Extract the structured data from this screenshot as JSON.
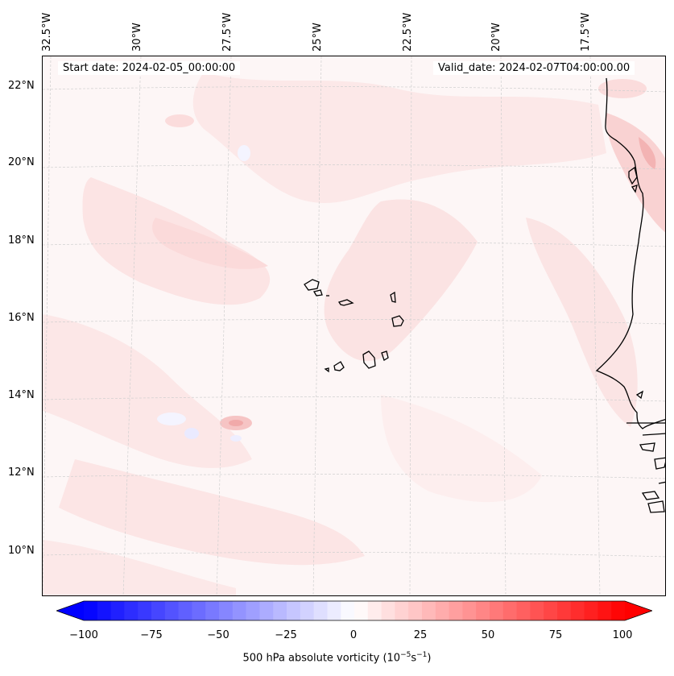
{
  "map": {
    "start_date": "Start date: 2024-02-05_00:00:00",
    "valid_date": "Valid_date: 2024-02-07T04:00:00.00",
    "lon_labels": [
      "32.5°W",
      "30°W",
      "27.5°W",
      "25°W",
      "22.5°W",
      "20°W",
      "17.5°W"
    ],
    "lat_labels": [
      "22°N",
      "20°N",
      "18°N",
      "16°N",
      "14°N",
      "12°N",
      "10°N"
    ],
    "colorbar": {
      "ticks": [
        "−100",
        "−75",
        "−50",
        "−25",
        "0",
        "25",
        "50",
        "75",
        "100"
      ],
      "label_main": "500 hPa absolute vorticity (10",
      "label_exp1": "−5",
      "label_mid": "s",
      "label_exp2": "−1",
      "label_end": ")",
      "min": -100,
      "max": 100,
      "extend": "both",
      "colormap": "bwr",
      "low_color": "#0000ff",
      "high_color": "#ff0000"
    },
    "colors": {
      "background_field": "#fdf5f5",
      "coastline": "#000000"
    }
  }
}
